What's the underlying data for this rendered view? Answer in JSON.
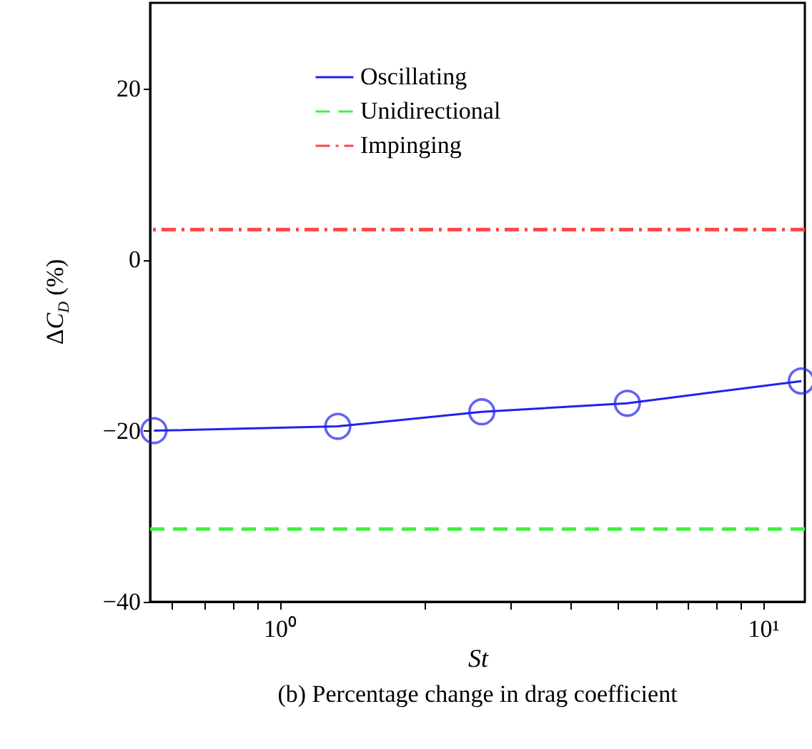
{
  "chart_data": {
    "type": "line",
    "xlabel": "St",
    "ylabel": "ΔC$_{D}$ (%)",
    "annotations": [
      "(b) Percentage change in drag coefficient"
    ],
    "series": [
      {
        "name": "Oscillating",
        "color": "#2222ee",
        "x": [
          0.55,
          1.32,
          2.62,
          5.24,
          12
        ],
        "values": [
          -20,
          -19.5,
          -17.8,
          -16.8,
          -14.2
        ],
        "marker": "circle",
        "line_style": "solid"
      }
    ],
    "ref_lines": [
      {
        "axis": "y",
        "value": -31.5,
        "label": "Unidirectional",
        "color": "#44ee44",
        "line_style": "dashed"
      },
      {
        "axis": "y",
        "value": 3.5,
        "label": "Impinging",
        "color": "#ff4444",
        "line_style": "dashdot"
      }
    ],
    "log": "x",
    "xlim": [
      0.54,
      12.2
    ],
    "ylim": [
      -40,
      30
    ],
    "xticks": [
      {
        "value": 0.6,
        "label": null
      },
      {
        "value": 0.7,
        "label": null
      },
      {
        "value": 0.8,
        "label": null
      },
      {
        "value": 0.9,
        "label": null
      },
      {
        "value": 1,
        "label": "10⁰"
      },
      {
        "value": 2,
        "label": null
      },
      {
        "value": 3,
        "label": null
      },
      {
        "value": 4,
        "label": null
      },
      {
        "value": 5,
        "label": null
      },
      {
        "value": 6,
        "label": null
      },
      {
        "value": 7,
        "label": null
      },
      {
        "value": 8,
        "label": null
      },
      {
        "value": 9,
        "label": null
      },
      {
        "value": 10,
        "label": "10¹"
      }
    ],
    "yticks": [
      -40,
      -20,
      0,
      20
    ],
    "grid": false,
    "legend": "top"
  }
}
